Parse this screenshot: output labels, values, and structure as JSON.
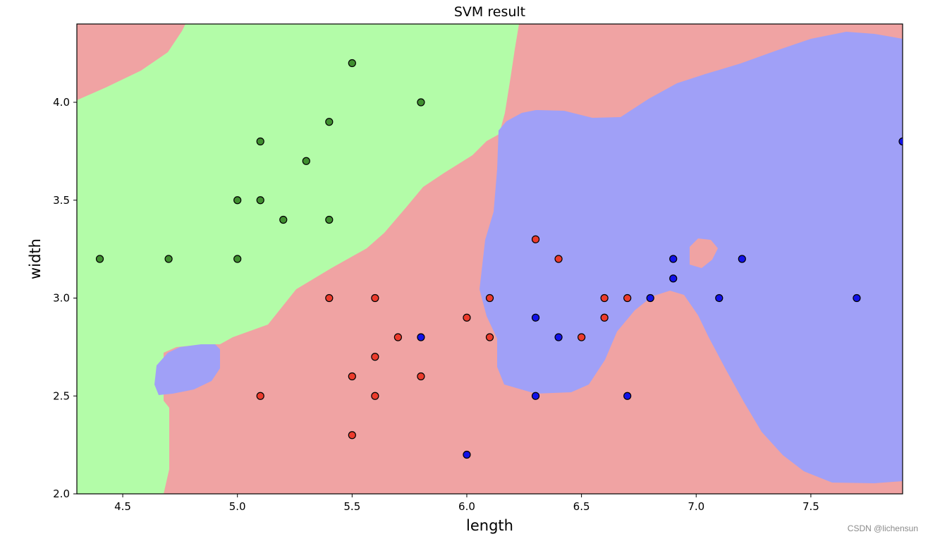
{
  "chart_data": {
    "type": "scatter",
    "title": "SVM result",
    "xlabel": "length",
    "ylabel": "width",
    "xlim": [
      4.3,
      7.9
    ],
    "ylim": [
      2.0,
      4.4
    ],
    "xticks": [
      "4.5",
      "5.0",
      "5.5",
      "6.0",
      "6.5",
      "7.0",
      "7.5"
    ],
    "yticks": [
      "2.0",
      "2.5",
      "3.0",
      "3.5",
      "4.0"
    ],
    "grid": false,
    "regions": [
      {
        "class": "green",
        "color": "#b3fca8"
      },
      {
        "class": "red",
        "color": "#f0a3a3"
      },
      {
        "class": "blue",
        "color": "#a0a0f7"
      }
    ],
    "series": [
      {
        "class": "green",
        "color": "#3f8f2f",
        "x": [
          4.4,
          4.7,
          5.0,
          5.0,
          5.1,
          5.1,
          5.2,
          5.3,
          5.4,
          5.4,
          5.5,
          5.8
        ],
        "y": [
          3.2,
          3.2,
          3.2,
          3.5,
          3.5,
          3.8,
          3.4,
          3.7,
          3.4,
          3.9,
          4.2,
          4.0
        ]
      },
      {
        "class": "red",
        "color": "#ec3b2c",
        "x": [
          5.1,
          5.4,
          5.5,
          5.5,
          5.6,
          5.6,
          5.6,
          5.7,
          5.8,
          6.0,
          6.1,
          6.1,
          6.3,
          6.4,
          6.5,
          6.6,
          6.6,
          6.7
        ],
        "y": [
          2.5,
          3.0,
          2.3,
          2.6,
          2.5,
          2.7,
          3.0,
          2.8,
          2.6,
          2.9,
          2.8,
          3.0,
          3.3,
          3.2,
          2.8,
          2.9,
          3.0,
          3.0
        ]
      },
      {
        "class": "blue",
        "color": "#1212e8",
        "x": [
          5.8,
          6.0,
          6.3,
          6.3,
          6.4,
          6.7,
          6.8,
          6.9,
          6.9,
          7.1,
          7.2,
          7.7,
          7.9
        ],
        "y": [
          2.8,
          2.2,
          2.5,
          2.9,
          2.8,
          2.5,
          3.0,
          3.1,
          3.2,
          3.0,
          3.2,
          3.0,
          3.8
        ]
      }
    ]
  },
  "watermark": "CSDN @lichensun"
}
